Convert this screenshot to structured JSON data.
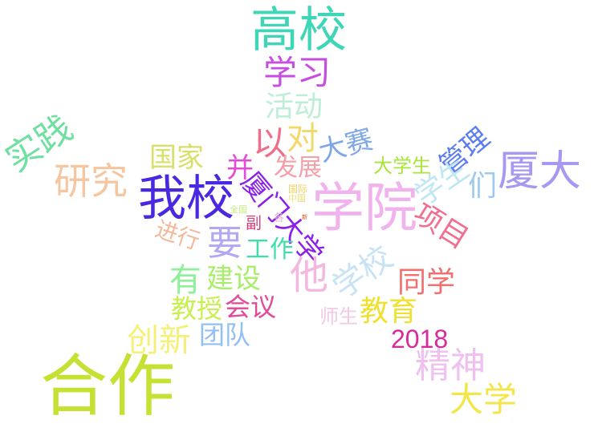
{
  "words": [
    {
      "text": "高校",
      "color": "#3fd6b8"
    },
    {
      "text": "学习",
      "color": "#c64de0"
    },
    {
      "text": "活动",
      "color": "#bfeed6"
    },
    {
      "text": "实践",
      "color": "#6fe0a0"
    },
    {
      "text": "以",
      "color": "#ef6f8a"
    },
    {
      "text": "对",
      "color": "#f3d86a"
    },
    {
      "text": "大赛",
      "color": "#7fa7e8"
    },
    {
      "text": "管理",
      "color": "#5c7df0"
    },
    {
      "text": "厦大",
      "color": "#a898f2"
    },
    {
      "text": "研究",
      "color": "#f5c6a0"
    },
    {
      "text": "国家",
      "color": "#d9e06a"
    },
    {
      "text": "并",
      "color": "#e64ad8"
    },
    {
      "text": "发展",
      "color": "#f4a0a8"
    },
    {
      "text": "大学生",
      "color": "#a7e638"
    },
    {
      "text": "学生",
      "color": "#bfe7f2"
    },
    {
      "text": "们",
      "color": "#9fc9ee"
    },
    {
      "text": "我校",
      "color": "#4a28e0"
    },
    {
      "text": "厦门大学",
      "color": "#8c1fe6"
    },
    {
      "text": "学院",
      "color": "#f0b3ee"
    },
    {
      "text": "项目",
      "color": "#f06f90"
    },
    {
      "text": "全国",
      "color": "#c7f07a"
    },
    {
      "text": "国际",
      "color": "#f0d060"
    },
    {
      "text": "中国",
      "color": "#f3e07a"
    },
    {
      "text": "各",
      "color": "#e8b0d8"
    },
    {
      "text": "新",
      "color": "#e05010"
    },
    {
      "text": "副",
      "color": "#d8407a"
    },
    {
      "text": "进行",
      "color": "#f5b898"
    },
    {
      "text": "要",
      "color": "#b3a6f2"
    },
    {
      "text": "工作",
      "color": "#3fe0a8"
    },
    {
      "text": "他",
      "color": "#f2b8e0"
    },
    {
      "text": "学校",
      "color": "#c8e4f4"
    },
    {
      "text": "同学",
      "color": "#f07070"
    },
    {
      "text": "有",
      "color": "#8ef09a"
    },
    {
      "text": "建设",
      "color": "#a8ee68"
    },
    {
      "text": "教育",
      "color": "#f0e030"
    },
    {
      "text": "教授",
      "color": "#c8f050"
    },
    {
      "text": "会议",
      "color": "#e04a98"
    },
    {
      "text": "师生",
      "color": "#f2c8e4"
    },
    {
      "text": "2018",
      "color": "#d82a98"
    },
    {
      "text": "创新",
      "color": "#f4f078"
    },
    {
      "text": "团队",
      "color": "#92c0f4"
    },
    {
      "text": "精神",
      "color": "#f0c0f0"
    },
    {
      "text": "合作",
      "color": "#c6e033"
    },
    {
      "text": "大学",
      "color": "#f2e648"
    }
  ]
}
